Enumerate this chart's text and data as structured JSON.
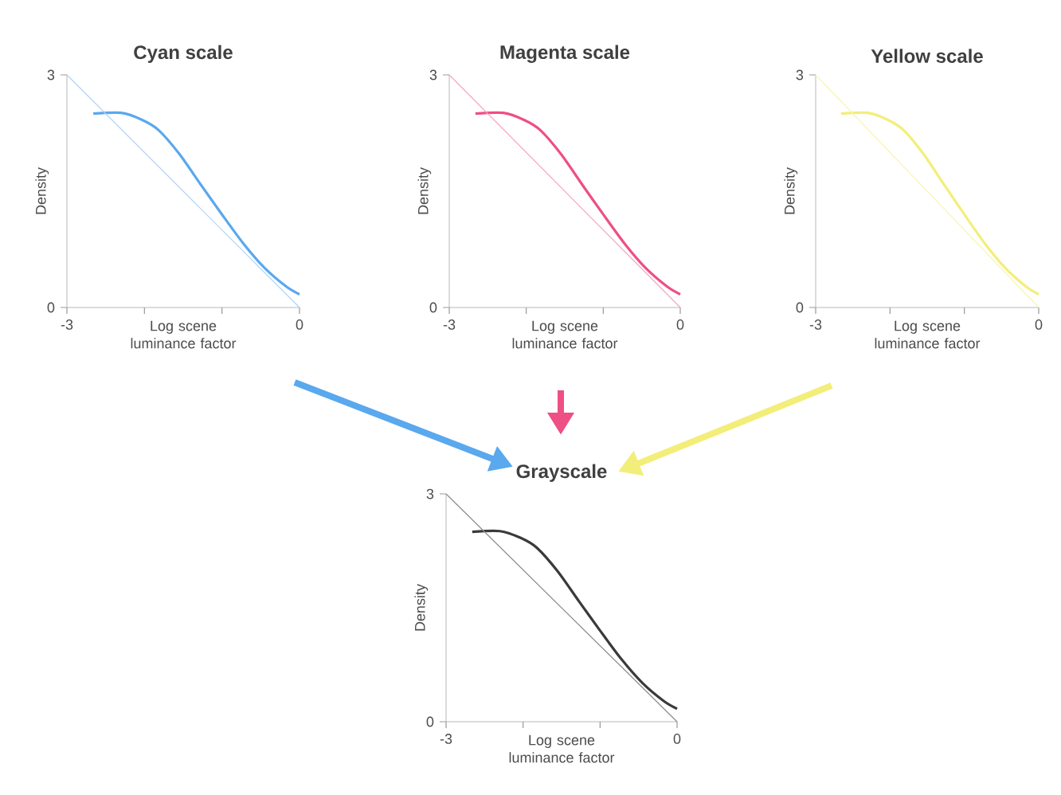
{
  "chart_data": [
    {
      "type": "line",
      "title": "Cyan scale",
      "xlabel": "Log scene luminance factor",
      "ylabel": "Density",
      "xlim": [
        -3,
        0
      ],
      "ylim": [
        0,
        3
      ],
      "xticks": [
        -3,
        0
      ],
      "yticks": [
        0,
        3
      ],
      "marker": "none",
      "series": [
        {
          "color": "#5aa8ee",
          "x": [
            -2.66,
            -2.3,
            -2.03,
            -1.82,
            -1.55,
            -1.27,
            -1.0,
            -0.72,
            -0.45,
            -0.17,
            0
          ],
          "values": [
            2.5,
            2.51,
            2.42,
            2.29,
            1.98,
            1.58,
            1.2,
            0.82,
            0.51,
            0.27,
            0.17
          ]
        },
        {
          "color": "#aed4f6",
          "x": [
            -3,
            0
          ],
          "values": [
            3,
            0
          ]
        }
      ]
    },
    {
      "type": "line",
      "title": "Magenta scale",
      "xlabel": "Log scene luminance factor",
      "ylabel": "Density",
      "xlim": [
        -3,
        0
      ],
      "ylim": [
        0,
        3
      ],
      "xticks": [
        -3,
        0
      ],
      "yticks": [
        0,
        3
      ],
      "marker": "none",
      "series": [
        {
          "color": "#ee4f84",
          "x": [
            -2.66,
            -2.3,
            -2.03,
            -1.82,
            -1.55,
            -1.27,
            -1.0,
            -0.72,
            -0.45,
            -0.17,
            0
          ],
          "values": [
            2.5,
            2.51,
            2.42,
            2.29,
            1.98,
            1.58,
            1.2,
            0.82,
            0.51,
            0.27,
            0.17
          ]
        },
        {
          "color": "#f5a6c2",
          "x": [
            -3,
            0
          ],
          "values": [
            3,
            0
          ]
        }
      ]
    },
    {
      "type": "line",
      "title": "Yellow scale",
      "xlabel": "Log scene luminance factor",
      "ylabel": "Density",
      "xlim": [
        -3,
        0
      ],
      "ylim": [
        0,
        3
      ],
      "xticks": [
        -3,
        0
      ],
      "yticks": [
        0,
        3
      ],
      "marker": "none",
      "series": [
        {
          "color": "#f3ee7a",
          "x": [
            -2.66,
            -2.3,
            -2.03,
            -1.82,
            -1.55,
            -1.27,
            -1.0,
            -0.72,
            -0.45,
            -0.17,
            0
          ],
          "values": [
            2.5,
            2.51,
            2.42,
            2.29,
            1.98,
            1.58,
            1.2,
            0.82,
            0.51,
            0.27,
            0.17
          ]
        },
        {
          "color": "#f8f4b4",
          "x": [
            -3,
            0
          ],
          "values": [
            3,
            0
          ]
        }
      ]
    },
    {
      "type": "line",
      "title": "Grayscale",
      "xlabel": "Log scene luminance factor",
      "ylabel": "Density",
      "xlim": [
        -3,
        0
      ],
      "ylim": [
        0,
        3
      ],
      "xticks": [
        -3,
        0
      ],
      "yticks": [
        0,
        3
      ],
      "marker": "none",
      "series": [
        {
          "color": "#3a3a3a",
          "x": [
            -2.66,
            -2.3,
            -2.03,
            -1.82,
            -1.55,
            -1.27,
            -1.0,
            -0.72,
            -0.45,
            -0.17,
            0
          ],
          "values": [
            2.5,
            2.51,
            2.42,
            2.29,
            1.98,
            1.58,
            1.2,
            0.82,
            0.51,
            0.27,
            0.17
          ]
        },
        {
          "color": "#8a8a8a",
          "x": [
            -3,
            0
          ],
          "values": [
            3,
            0
          ]
        }
      ]
    }
  ]
}
